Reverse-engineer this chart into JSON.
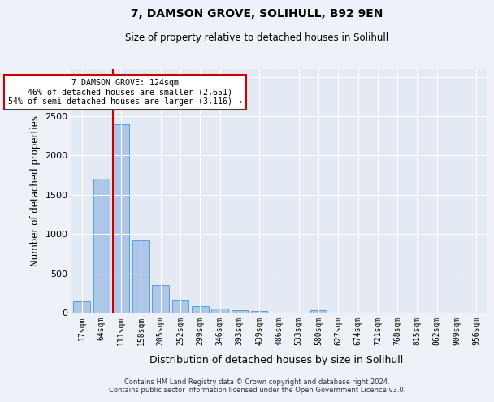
{
  "title1": "7, DAMSON GROVE, SOLIHULL, B92 9EN",
  "title2": "Size of property relative to detached houses in Solihull",
  "xlabel": "Distribution of detached houses by size in Solihull",
  "ylabel": "Number of detached properties",
  "categories": [
    "17sqm",
    "64sqm",
    "111sqm",
    "158sqm",
    "205sqm",
    "252sqm",
    "299sqm",
    "346sqm",
    "393sqm",
    "439sqm",
    "486sqm",
    "533sqm",
    "580sqm",
    "627sqm",
    "674sqm",
    "721sqm",
    "768sqm",
    "815sqm",
    "862sqm",
    "909sqm",
    "956sqm"
  ],
  "values": [
    140,
    1700,
    2400,
    920,
    350,
    160,
    85,
    50,
    35,
    25,
    0,
    0,
    30,
    0,
    0,
    0,
    0,
    0,
    0,
    0,
    0
  ],
  "bar_color": "#aec6e8",
  "bar_edge_color": "#5a9fd4",
  "annotation_text_line1": "7 DAMSON GROVE: 124sqm",
  "annotation_text_line2": "← 46% of detached houses are smaller (2,651)",
  "annotation_text_line3": "54% of semi-detached houses are larger (3,116) →",
  "annotation_box_color": "#ffffff",
  "annotation_box_edge_color": "#cc0000",
  "vline_color": "#cc0000",
  "vline_x_index": 2,
  "ylim": [
    0,
    3100
  ],
  "yticks": [
    0,
    500,
    1000,
    1500,
    2000,
    2500,
    3000
  ],
  "footer1": "Contains HM Land Registry data © Crown copyright and database right 2024.",
  "footer2": "Contains public sector information licensed under the Open Government Licence v3.0.",
  "background_color": "#eef2f8",
  "plot_background": "#e4eaf4"
}
